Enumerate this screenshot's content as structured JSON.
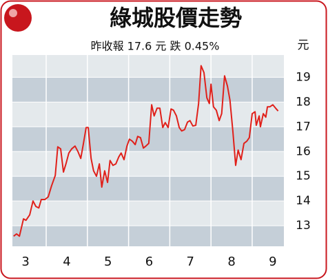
{
  "chart_data": {
    "type": "line",
    "title": "綠城股價走勢",
    "subtitle": "昨收報 17.6 元  跌 0.45%",
    "y_unit": "元",
    "x": [
      2.71,
      2.78,
      2.85,
      2.95,
      3.01,
      3.1,
      3.18,
      3.25,
      3.32,
      3.38,
      3.47,
      3.55,
      3.63,
      3.72,
      3.78,
      3.85,
      3.92,
      3.98,
      4.05,
      4.12,
      4.2,
      4.27,
      4.34,
      4.4,
      4.47,
      4.52,
      4.59,
      4.65,
      4.72,
      4.79,
      4.85,
      4.92,
      4.99,
      5.05,
      5.12,
      5.19,
      5.26,
      5.32,
      5.39,
      5.46,
      5.52,
      5.59,
      5.66,
      5.72,
      5.79,
      5.86,
      5.92,
      5.99,
      6.06,
      6.12,
      6.19,
      6.26,
      6.33,
      6.39,
      6.46,
      6.53,
      6.59,
      6.66,
      6.73,
      6.79,
      6.86,
      6.93,
      6.99,
      7.06,
      7.13,
      7.2,
      7.26,
      7.33,
      7.4,
      7.46,
      7.5,
      7.56,
      7.63,
      7.7,
      7.76,
      7.83,
      7.9,
      7.96,
      8.03,
      8.1,
      8.16,
      8.23,
      8.3,
      8.37,
      8.43,
      8.5,
      8.57,
      8.6,
      8.67,
      8.7,
      8.77,
      8.83,
      8.87,
      8.93,
      9.0,
      9.07,
      9.13
    ],
    "series": [
      {
        "color": "#e0201a",
        "values": [
          12.58,
          12.67,
          12.58,
          13.28,
          13.22,
          13.44,
          14.0,
          13.78,
          13.72,
          14.06,
          14.06,
          14.17,
          14.61,
          15.03,
          16.19,
          16.11,
          15.17,
          15.5,
          15.94,
          16.11,
          16.22,
          16.0,
          15.72,
          16.28,
          16.97,
          16.97,
          15.72,
          15.22,
          15.0,
          15.5,
          14.56,
          15.22,
          14.75,
          15.64,
          15.44,
          15.5,
          15.78,
          15.94,
          15.67,
          16.22,
          16.5,
          16.42,
          16.28,
          16.61,
          16.56,
          16.14,
          16.22,
          16.33,
          17.89,
          17.44,
          17.75,
          17.75,
          16.97,
          17.17,
          16.97,
          17.72,
          17.67,
          17.44,
          16.97,
          16.83,
          16.89,
          17.19,
          17.25,
          17.03,
          17.06,
          17.94,
          19.47,
          19.19,
          18.17,
          17.94,
          18.72,
          17.81,
          17.67,
          17.25,
          17.53,
          19.06,
          18.64,
          18.08,
          16.83,
          15.44,
          16.06,
          15.67,
          16.33,
          16.42,
          16.56,
          17.53,
          17.61,
          17.06,
          17.44,
          17.0,
          17.53,
          17.39,
          17.81,
          17.81,
          17.89,
          17.75,
          17.64
        ]
      }
    ],
    "xlim": [
      2.68,
      9.27
    ],
    "xticks": [
      3,
      4,
      5,
      6,
      7,
      8,
      9
    ],
    "ylim": [
      12.17,
      19.9
    ],
    "yticks": [
      13,
      14,
      15,
      16,
      17,
      18,
      19
    ]
  }
}
